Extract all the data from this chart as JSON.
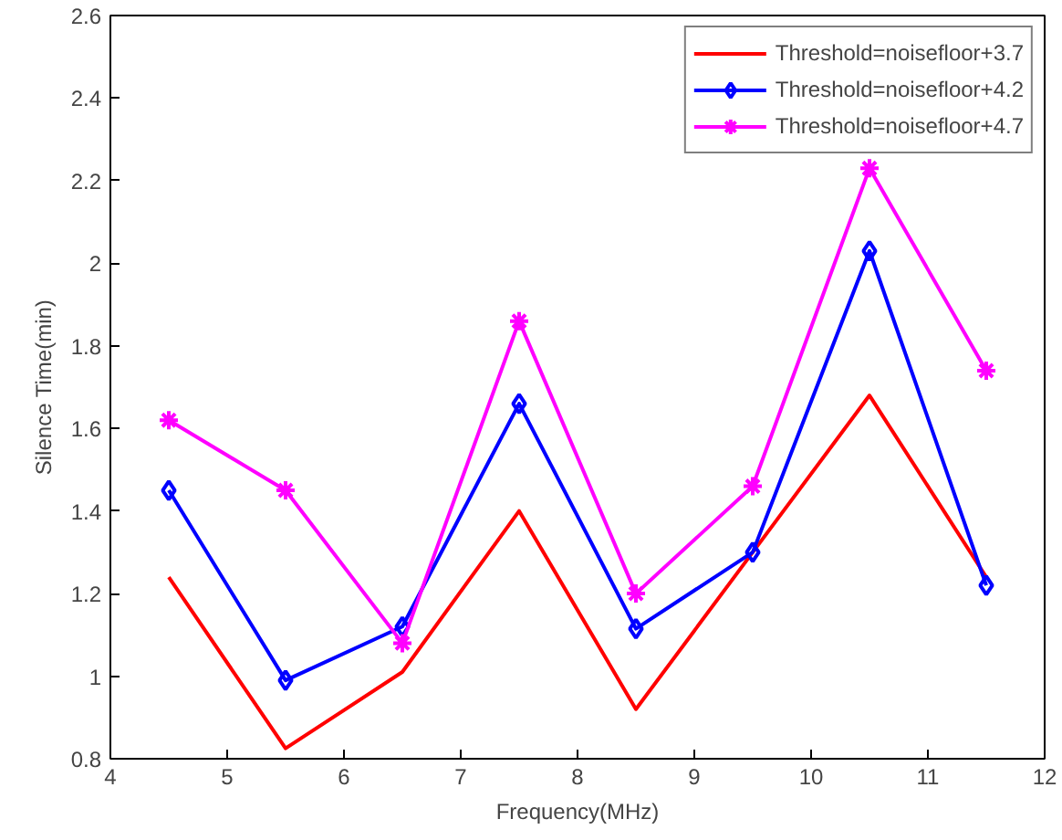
{
  "chart_data": {
    "type": "line",
    "xlabel": "Frequency(MHz)",
    "ylabel": "Silence Time(min)",
    "x": [
      4.5,
      5.5,
      6.5,
      7.5,
      8.5,
      9.5,
      10.5,
      11.5
    ],
    "series": [
      {
        "name": "Threshold=noisefloor+3.7",
        "color": "#ff0000",
        "marker": "none",
        "values": [
          1.24,
          0.825,
          1.01,
          1.4,
          0.92,
          1.3,
          1.68,
          1.24
        ]
      },
      {
        "name": "Threshold=noisefloor+4.2",
        "color": "#0000ff",
        "marker": "diamond",
        "values": [
          1.45,
          0.99,
          1.12,
          1.66,
          1.115,
          1.3,
          2.03,
          1.22
        ]
      },
      {
        "name": "Threshold=noisefloor+4.7",
        "color": "#ff00ff",
        "marker": "cross",
        "values": [
          1.62,
          1.45,
          1.08,
          1.86,
          1.2,
          1.46,
          2.23,
          1.74
        ]
      }
    ],
    "xlim": [
      4,
      12
    ],
    "xticks": [
      4,
      5,
      6,
      7,
      8,
      9,
      10,
      11,
      12
    ],
    "ylim": [
      0.8,
      2.6
    ],
    "yticks": [
      0.8,
      1,
      1.2,
      1.4,
      1.6,
      1.8,
      2,
      2.2,
      2.4,
      2.6
    ],
    "grid": false,
    "legend": "top right",
    "line_style": "solid"
  }
}
